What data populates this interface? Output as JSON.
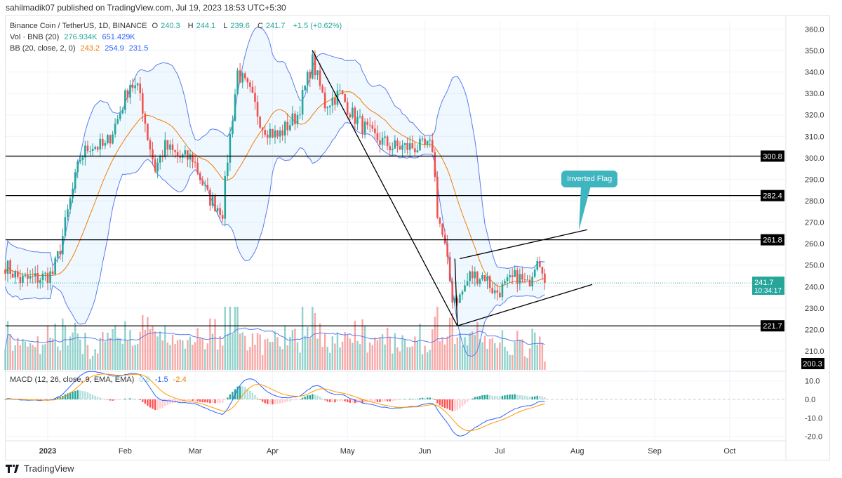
{
  "header": {
    "published": "sahilmadik07 published on TradingView.com, Jul 19, 2023 18:53 UTC+5:30"
  },
  "legend": {
    "symbol": "Binance Coin / TetherUS, 1D, BINANCE",
    "o_label": "O",
    "o": "240.3",
    "h_label": "H",
    "h": "244.1",
    "l_label": "L",
    "l": "239.6",
    "c_label": "C",
    "c": "241.7",
    "change": "+1.5 (+0.62%)",
    "vol_label": "Vol · BNB (20)",
    "vol": "276.934K",
    "vol_ma": "651.429K",
    "bb_label": "BB (20, close, 2, 0)",
    "bb_basis": "243.2",
    "bb_upper": "254.9",
    "bb_lower": "231.5",
    "macd_label": "MACD (12, 26, close, 9, EMA, EMA)",
    "macd_hist": "0.8",
    "macd": "-1.5",
    "macd_signal": "-2.4"
  },
  "annotation": {
    "text": "Inverted Flag"
  },
  "logo": {
    "text": "TradingView"
  },
  "colors": {
    "up": "#26a69a",
    "down": "#ef5350",
    "bb": "#5b7cf0",
    "basis": "#f57c00",
    "macd": "#2962ff",
    "signal": "#ff9800",
    "callout": "#3fb5bf"
  },
  "chart_data": {
    "type": "candlestick",
    "price_axis": {
      "ticks": [
        210,
        220,
        230,
        240,
        250,
        260,
        270,
        280,
        290,
        300,
        310,
        320,
        330,
        340,
        350,
        360
      ],
      "range": [
        200,
        360
      ]
    },
    "macd_axis": {
      "ticks": [
        10,
        0,
        -10,
        -20
      ]
    },
    "time_axis": {
      "labels": [
        {
          "t": "2023",
          "date": "2023-01-01"
        },
        {
          "t": "Feb",
          "date": "2023-02-01"
        },
        {
          "t": "Mar",
          "date": "2023-03-01"
        },
        {
          "t": "Apr",
          "date": "2023-04-01"
        },
        {
          "t": "May",
          "date": "2023-05-01"
        },
        {
          "t": "Jun",
          "date": "2023-06-01"
        },
        {
          "t": "Jul",
          "date": "2023-07-01"
        },
        {
          "t": "Aug",
          "date": "2023-08-01"
        },
        {
          "t": "Sep",
          "date": "2023-09-01"
        },
        {
          "t": "Oct",
          "date": "2023-10-01"
        }
      ]
    },
    "close_path": [
      [
        "2022-12-15",
        250
      ],
      [
        "2022-12-21",
        243
      ],
      [
        "2022-12-29",
        244
      ],
      [
        "2023-01-03",
        246
      ],
      [
        "2023-01-06",
        258
      ],
      [
        "2023-01-10",
        280
      ],
      [
        "2023-01-14",
        300
      ],
      [
        "2023-01-18",
        306
      ],
      [
        "2023-01-24",
        305
      ],
      [
        "2023-01-29",
        318
      ],
      [
        "2023-02-03",
        335
      ],
      [
        "2023-02-07",
        330
      ],
      [
        "2023-02-10",
        310
      ],
      [
        "2023-02-13",
        295
      ],
      [
        "2023-02-17",
        305
      ],
      [
        "2023-02-23",
        300
      ],
      [
        "2023-02-28",
        300
      ],
      [
        "2023-03-06",
        282
      ],
      [
        "2023-03-12",
        275
      ],
      [
        "2023-03-14",
        300
      ],
      [
        "2023-03-18",
        340
      ],
      [
        "2023-03-23",
        330
      ],
      [
        "2023-03-28",
        315
      ],
      [
        "2023-04-03",
        310
      ],
      [
        "2023-04-11",
        320
      ],
      [
        "2023-04-17",
        345
      ],
      [
        "2023-04-22",
        325
      ],
      [
        "2023-04-28",
        330
      ],
      [
        "2023-05-03",
        320
      ],
      [
        "2023-05-11",
        310
      ],
      [
        "2023-05-19",
        305
      ],
      [
        "2023-05-28",
        305
      ],
      [
        "2023-06-04",
        305
      ],
      [
        "2023-06-06",
        275
      ],
      [
        "2023-06-09",
        258
      ],
      [
        "2023-06-12",
        235
      ],
      [
        "2023-06-15",
        235
      ],
      [
        "2023-06-19",
        245
      ],
      [
        "2023-06-25",
        245
      ],
      [
        "2023-06-29",
        237
      ],
      [
        "2023-07-03",
        240
      ],
      [
        "2023-07-08",
        245
      ],
      [
        "2023-07-12",
        240
      ],
      [
        "2023-07-16",
        255
      ],
      [
        "2023-07-18",
        250
      ],
      [
        "2023-07-19",
        241.7
      ]
    ],
    "levels": [
      {
        "price": 300.8,
        "label": "300.8"
      },
      {
        "price": 282.4,
        "label": "282.4"
      },
      {
        "price": 261.8,
        "label": "261.8"
      },
      {
        "price": 221.7,
        "label": "221.7"
      }
    ],
    "last_price": {
      "price": 241.7,
      "label": "241.7",
      "countdown": "10:34:17"
    },
    "low_label": {
      "price": 200.3,
      "label": "200.3"
    },
    "trendlines": [
      {
        "from": [
          "2023-04-17",
          350
        ],
        "to": [
          "2023-06-14",
          221.7
        ]
      },
      {
        "from": [
          "2023-06-15",
          253
        ],
        "to": [
          "2023-08-05",
          266.5
        ]
      },
      {
        "from": [
          "2023-06-14",
          221.7
        ],
        "to": [
          "2023-08-07",
          241
        ]
      },
      {
        "from": [
          "2023-06-13",
          253
        ],
        "to": [
          "2023-06-14",
          221.7
        ]
      }
    ]
  }
}
